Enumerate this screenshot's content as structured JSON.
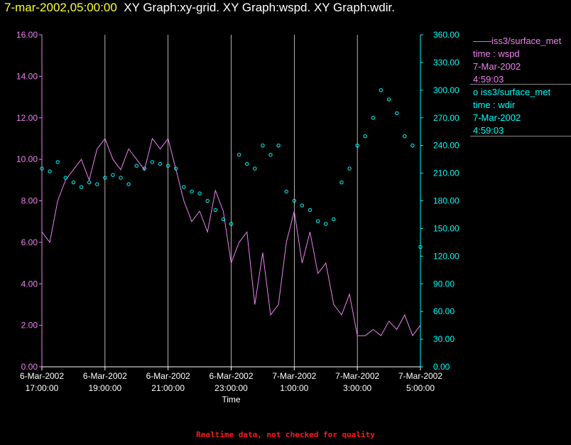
{
  "header": {
    "timestamp": "7-mar-2002,05:00:00",
    "graphs": "XY Graph:xy-grid.  XY Graph:wspd.  XY Graph:wdir."
  },
  "legend": {
    "wspd": {
      "line1": "——iss3/surface_met",
      "line2": "time : wspd",
      "line3": "7-Mar-2002",
      "line4": "4:59:03"
    },
    "wdir": {
      "line1": "o  iss3/surface_met",
      "line2": "time : wdir",
      "line3": "7-Mar-2002",
      "line4": "4:59:03"
    }
  },
  "footer": {
    "note": "Realtime data, not checked for quality"
  },
  "colors": {
    "wspd": "#ee82ee",
    "wdir": "#00ffff",
    "timestamp": "#ffff33",
    "grid": "#ffffff",
    "footer": "#ff1a1a"
  },
  "chart_data": {
    "type": "line",
    "xlabel": "Time",
    "x_ticks": [
      {
        "t": 0,
        "l1": "6-Mar-2002",
        "l2": "17:00:00"
      },
      {
        "t": 2,
        "l1": "6-Mar-2002",
        "l2": "19:00:00"
      },
      {
        "t": 4,
        "l1": "6-Mar-2002",
        "l2": "21:00:00"
      },
      {
        "t": 6,
        "l1": "6-Mar-2002",
        "l2": "23:00:00"
      },
      {
        "t": 8,
        "l1": "7-Mar-2002",
        "l2": "1:00:00"
      },
      {
        "t": 10,
        "l1": "7-Mar-2002",
        "l2": "3:00:00"
      },
      {
        "t": 12,
        "l1": "7-Mar-2002",
        "l2": "5:00:00"
      }
    ],
    "x_unit": "hours since 6-Mar-2002 17:00:00",
    "xlim": [
      0,
      12
    ],
    "y_left": {
      "ylim": [
        0,
        16
      ],
      "ticks": [
        "0.00",
        "2.00",
        "4.00",
        "6.00",
        "8.00",
        "10.00",
        "12.00",
        "14.00",
        "16.00"
      ]
    },
    "y_right": {
      "ylim": [
        0,
        360
      ],
      "ticks": [
        "0.00",
        "30.00",
        "60.00",
        "90.00",
        "120.00",
        "150.00",
        "180.00",
        "210.00",
        "240.00",
        "270.00",
        "300.00",
        "330.00",
        "360.00"
      ]
    },
    "series": [
      {
        "name": "iss3/surface_met time : wspd",
        "type": "line",
        "axis": "left",
        "x": [
          0,
          0.25,
          0.5,
          0.75,
          1,
          1.25,
          1.5,
          1.75,
          2,
          2.25,
          2.5,
          2.75,
          3,
          3.25,
          3.5,
          3.75,
          4,
          4.25,
          4.5,
          4.75,
          5,
          5.25,
          5.5,
          5.75,
          6,
          6.25,
          6.5,
          6.75,
          7,
          7.25,
          7.5,
          7.75,
          8,
          8.25,
          8.5,
          8.75,
          9,
          9.25,
          9.5,
          9.75,
          10,
          10.25,
          10.5,
          10.75,
          11,
          11.25,
          11.5,
          11.75,
          12
        ],
        "y": [
          6.5,
          6,
          8,
          9,
          9.5,
          10,
          9,
          10.5,
          11,
          10,
          9.5,
          10.5,
          10,
          9.5,
          11,
          10.5,
          11,
          9.5,
          8,
          7,
          7.5,
          6.5,
          8.5,
          7.5,
          5,
          6,
          6.5,
          3,
          5.5,
          2.5,
          3,
          6,
          7.5,
          5,
          6.5,
          4.5,
          5,
          3,
          2.5,
          3.5,
          1.5,
          1.5,
          1.8,
          1.5,
          2.2,
          1.8,
          2.5,
          1.5,
          2
        ]
      },
      {
        "name": "iss3/surface_met time : wdir",
        "type": "scatter",
        "axis": "right",
        "x": [
          0,
          0.25,
          0.5,
          0.75,
          1,
          1.25,
          1.5,
          1.75,
          2,
          2.25,
          2.5,
          2.75,
          3,
          3.25,
          3.5,
          3.75,
          4,
          4.25,
          4.5,
          4.75,
          5,
          5.25,
          5.5,
          5.75,
          6,
          6.25,
          6.5,
          6.75,
          7,
          7.25,
          7.5,
          7.75,
          8,
          8.25,
          8.5,
          8.75,
          9,
          9.25,
          9.5,
          9.75,
          10,
          10.25,
          10.5,
          10.75,
          11,
          11.25,
          11.5,
          11.75,
          12
        ],
        "y": [
          215,
          212,
          222,
          205,
          200,
          195,
          200,
          198,
          205,
          208,
          205,
          198,
          218,
          215,
          222,
          220,
          218,
          215,
          195,
          190,
          188,
          180,
          170,
          160,
          155,
          230,
          220,
          215,
          240,
          230,
          240,
          190,
          180,
          175,
          170,
          158,
          155,
          160,
          200,
          215,
          240,
          250,
          270,
          300,
          290,
          275,
          250,
          240,
          130
        ]
      }
    ]
  }
}
